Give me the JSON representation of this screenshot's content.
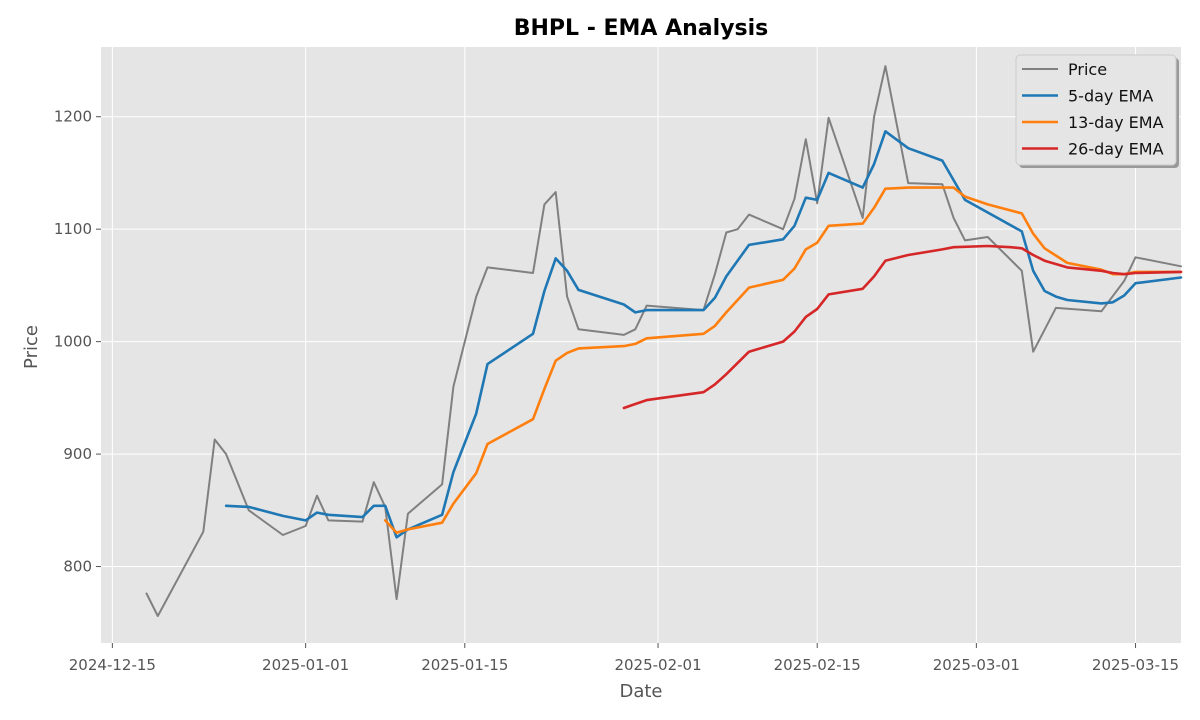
{
  "chart_data": {
    "type": "line",
    "title": "BHPL - EMA Analysis",
    "xlabel": "Date",
    "ylabel": "Price",
    "xlim": [
      "2024-12-14",
      "2025-03-19"
    ],
    "ylim": [
      732,
      1262
    ],
    "x_ticks": [
      "2024-12-15",
      "2025-01-01",
      "2025-01-15",
      "2025-02-01",
      "2025-02-15",
      "2025-03-01",
      "2025-03-15"
    ],
    "y_ticks": [
      800,
      900,
      1000,
      1100,
      1200
    ],
    "grid": true,
    "legend_position": "top-right",
    "series": [
      {
        "name": "Price",
        "color": "#808080",
        "points": [
          [
            "2024-12-18",
            776
          ],
          [
            "2024-12-19",
            756
          ],
          [
            "2024-12-23",
            831
          ],
          [
            "2024-12-24",
            913
          ],
          [
            "2024-12-25",
            900
          ],
          [
            "2024-12-27",
            850
          ],
          [
            "2024-12-30",
            828
          ],
          [
            "2025-01-01",
            836
          ],
          [
            "2025-01-02",
            863
          ],
          [
            "2025-01-03",
            841
          ],
          [
            "2025-01-06",
            840
          ],
          [
            "2025-01-07",
            875
          ],
          [
            "2025-01-08",
            853
          ],
          [
            "2025-01-09",
            771
          ],
          [
            "2025-01-10",
            847
          ],
          [
            "2025-01-13",
            873
          ],
          [
            "2025-01-14",
            960
          ],
          [
            "2025-01-16",
            1040
          ],
          [
            "2025-01-17",
            1066
          ],
          [
            "2025-01-21",
            1061
          ],
          [
            "2025-01-22",
            1122
          ],
          [
            "2025-01-23",
            1133
          ],
          [
            "2025-01-24",
            1040
          ],
          [
            "2025-01-25",
            1011
          ],
          [
            "2025-01-29",
            1006
          ],
          [
            "2025-01-30",
            1011
          ],
          [
            "2025-01-31",
            1032
          ],
          [
            "2025-02-05",
            1028
          ],
          [
            "2025-02-06",
            1060
          ],
          [
            "2025-02-07",
            1097
          ],
          [
            "2025-02-08",
            1100
          ],
          [
            "2025-02-09",
            1113
          ],
          [
            "2025-02-12",
            1100
          ],
          [
            "2025-02-13",
            1127
          ],
          [
            "2025-02-14",
            1180
          ],
          [
            "2025-02-15",
            1123
          ],
          [
            "2025-02-16",
            1199
          ],
          [
            "2025-02-19",
            1110
          ],
          [
            "2025-02-20",
            1200
          ],
          [
            "2025-02-21",
            1245
          ],
          [
            "2025-02-23",
            1141
          ],
          [
            "2025-02-26",
            1140
          ],
          [
            "2025-02-27",
            1110
          ],
          [
            "2025-02-28",
            1090
          ],
          [
            "2025-03-02",
            1093
          ],
          [
            "2025-03-05",
            1063
          ],
          [
            "2025-03-06",
            991
          ],
          [
            "2025-03-08",
            1030
          ],
          [
            "2025-03-12",
            1027
          ],
          [
            "2025-03-14",
            1054
          ],
          [
            "2025-03-15",
            1075
          ],
          [
            "2025-03-19",
            1067
          ]
        ]
      },
      {
        "name": "5-day EMA",
        "color": "#1f77b4",
        "points": [
          [
            "2024-12-25",
            854
          ],
          [
            "2024-12-27",
            853
          ],
          [
            "2024-12-30",
            845
          ],
          [
            "2025-01-01",
            841
          ],
          [
            "2025-01-02",
            848
          ],
          [
            "2025-01-03",
            846
          ],
          [
            "2025-01-06",
            844
          ],
          [
            "2025-01-07",
            854
          ],
          [
            "2025-01-08",
            854
          ],
          [
            "2025-01-09",
            826
          ],
          [
            "2025-01-10",
            833
          ],
          [
            "2025-01-13",
            846
          ],
          [
            "2025-01-14",
            884
          ],
          [
            "2025-01-16",
            936
          ],
          [
            "2025-01-17",
            980
          ],
          [
            "2025-01-21",
            1007
          ],
          [
            "2025-01-22",
            1045
          ],
          [
            "2025-01-23",
            1074
          ],
          [
            "2025-01-24",
            1063
          ],
          [
            "2025-01-25",
            1046
          ],
          [
            "2025-01-29",
            1033
          ],
          [
            "2025-01-30",
            1026
          ],
          [
            "2025-01-31",
            1028
          ],
          [
            "2025-02-05",
            1028
          ],
          [
            "2025-02-06",
            1039
          ],
          [
            "2025-02-07",
            1058
          ],
          [
            "2025-02-09",
            1086
          ],
          [
            "2025-02-12",
            1091
          ],
          [
            "2025-02-13",
            1103
          ],
          [
            "2025-02-14",
            1128
          ],
          [
            "2025-02-15",
            1126
          ],
          [
            "2025-02-16",
            1150
          ],
          [
            "2025-02-19",
            1137
          ],
          [
            "2025-02-20",
            1158
          ],
          [
            "2025-02-21",
            1187
          ],
          [
            "2025-02-23",
            1172
          ],
          [
            "2025-02-26",
            1161
          ],
          [
            "2025-02-28",
            1126
          ],
          [
            "2025-03-05",
            1098
          ],
          [
            "2025-03-06",
            1063
          ],
          [
            "2025-03-07",
            1045
          ],
          [
            "2025-03-08",
            1040
          ],
          [
            "2025-03-09",
            1037
          ],
          [
            "2025-03-12",
            1034
          ],
          [
            "2025-03-13",
            1035
          ],
          [
            "2025-03-14",
            1041
          ],
          [
            "2025-03-15",
            1052
          ],
          [
            "2025-03-19",
            1057
          ]
        ]
      },
      {
        "name": "13-day EMA",
        "color": "#ff7f0e",
        "points": [
          [
            "2025-01-08",
            841
          ],
          [
            "2025-01-09",
            830
          ],
          [
            "2025-01-10",
            833
          ],
          [
            "2025-01-13",
            839
          ],
          [
            "2025-01-14",
            856
          ],
          [
            "2025-01-16",
            883
          ],
          [
            "2025-01-17",
            909
          ],
          [
            "2025-01-21",
            931
          ],
          [
            "2025-01-22",
            958
          ],
          [
            "2025-01-23",
            983
          ],
          [
            "2025-01-24",
            990
          ],
          [
            "2025-01-25",
            994
          ],
          [
            "2025-01-29",
            996
          ],
          [
            "2025-01-30",
            998
          ],
          [
            "2025-01-31",
            1003
          ],
          [
            "2025-02-05",
            1007
          ],
          [
            "2025-02-06",
            1014
          ],
          [
            "2025-02-07",
            1026
          ],
          [
            "2025-02-09",
            1048
          ],
          [
            "2025-02-12",
            1055
          ],
          [
            "2025-02-13",
            1065
          ],
          [
            "2025-02-14",
            1082
          ],
          [
            "2025-02-15",
            1088
          ],
          [
            "2025-02-16",
            1103
          ],
          [
            "2025-02-19",
            1105
          ],
          [
            "2025-02-20",
            1119
          ],
          [
            "2025-02-21",
            1136
          ],
          [
            "2025-02-23",
            1137
          ],
          [
            "2025-02-27",
            1137
          ],
          [
            "2025-02-28",
            1129
          ],
          [
            "2025-03-02",
            1122
          ],
          [
            "2025-03-05",
            1114
          ],
          [
            "2025-03-06",
            1096
          ],
          [
            "2025-03-07",
            1083
          ],
          [
            "2025-03-09",
            1070
          ],
          [
            "2025-03-12",
            1064
          ],
          [
            "2025-03-13",
            1060
          ],
          [
            "2025-03-14",
            1060
          ],
          [
            "2025-03-15",
            1062
          ],
          [
            "2025-03-19",
            1062
          ]
        ]
      },
      {
        "name": "26-day EMA",
        "color": "#d62728",
        "points": [
          [
            "2025-01-29",
            941
          ],
          [
            "2025-01-31",
            948
          ],
          [
            "2025-02-05",
            955
          ],
          [
            "2025-02-06",
            962
          ],
          [
            "2025-02-07",
            971
          ],
          [
            "2025-02-09",
            991
          ],
          [
            "2025-02-12",
            1000
          ],
          [
            "2025-02-13",
            1009
          ],
          [
            "2025-02-14",
            1022
          ],
          [
            "2025-02-15",
            1029
          ],
          [
            "2025-02-16",
            1042
          ],
          [
            "2025-02-19",
            1047
          ],
          [
            "2025-02-20",
            1058
          ],
          [
            "2025-02-21",
            1072
          ],
          [
            "2025-02-23",
            1077
          ],
          [
            "2025-02-26",
            1082
          ],
          [
            "2025-02-27",
            1084
          ],
          [
            "2025-03-02",
            1085
          ],
          [
            "2025-03-04",
            1084
          ],
          [
            "2025-03-05",
            1083
          ],
          [
            "2025-03-06",
            1077
          ],
          [
            "2025-03-07",
            1072
          ],
          [
            "2025-03-09",
            1066
          ],
          [
            "2025-03-12",
            1063
          ],
          [
            "2025-03-13",
            1061
          ],
          [
            "2025-03-14",
            1060
          ],
          [
            "2025-03-15",
            1061
          ],
          [
            "2025-03-19",
            1062
          ]
        ]
      }
    ]
  }
}
